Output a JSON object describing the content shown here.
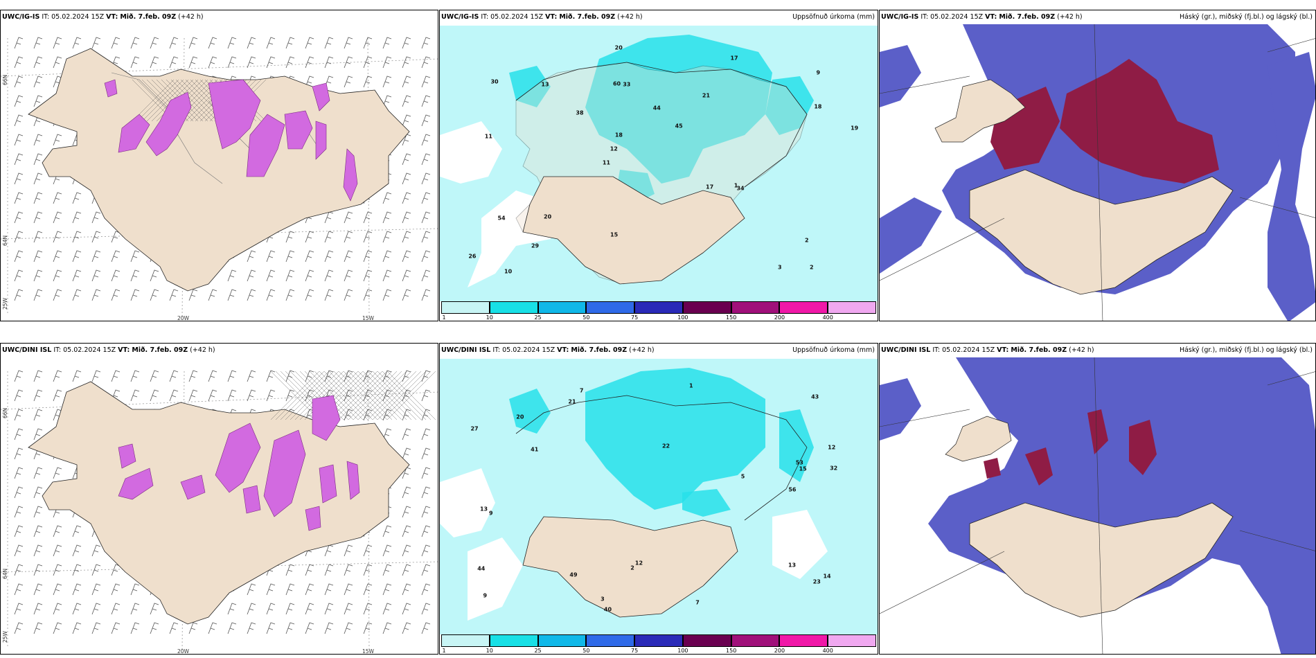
{
  "panels": [
    {
      "id": "ig-wind",
      "model": "UWC/IG-IS",
      "it_label": "IT:",
      "it_value": "05.02.2024 15Z",
      "vt_label": "VT:",
      "vt_value": "Mið. 7.feb. 09Z",
      "lead": "(+42 h)",
      "right_title": "",
      "lat_labels": [
        "66N",
        "64N",
        "25W"
      ],
      "lon_labels": [
        "20W",
        "15W"
      ]
    },
    {
      "id": "ig-precip",
      "model": "UWC/IG-IS",
      "it_label": "IT:",
      "it_value": "05.02.2024 15Z",
      "vt_label": "VT:",
      "vt_value": "Mið. 7.feb. 09Z",
      "lead": "(+42 h)",
      "right_title": "Uppsöfnuð úrkoma (mm)",
      "numbers": [
        "2",
        "11",
        "9",
        "11",
        "21",
        "10",
        "60",
        "44",
        "54",
        "38",
        "26",
        "29",
        "33",
        "45",
        "34",
        "30",
        "20",
        "19",
        "17",
        "18",
        "12",
        "15",
        "18",
        "13",
        "17",
        "20",
        "3",
        "2",
        "1"
      ]
    },
    {
      "id": "ig-cloud",
      "model": "UWC/IG-IS",
      "it_label": "IT:",
      "it_value": "05.02.2024 15Z",
      "vt_label": "VT:",
      "vt_value": "Mið. 7.feb. 09Z",
      "lead": "(+42 h)",
      "right_title": "Háský (gr.), miðský (fj.bl.) og lágský (bl.)"
    },
    {
      "id": "dini-wind",
      "model": "UWC/DINI ISL",
      "it_label": "IT:",
      "it_value": "05.02.2024 15Z",
      "vt_label": "VT:",
      "vt_value": "Mið. 7.feb. 09Z",
      "lead": "(+42 h)",
      "right_title": "",
      "lat_labels": [
        "66N",
        "64N",
        "25W"
      ],
      "lon_labels": [
        "20W",
        "15W"
      ]
    },
    {
      "id": "dini-precip",
      "model": "UWC/DINI ISL",
      "it_label": "IT:",
      "it_value": "05.02.2024 15Z",
      "vt_label": "VT:",
      "vt_value": "Mið. 7.feb. 09Z",
      "lead": "(+42 h)",
      "right_title": "Uppsöfnuð úrkoma (mm)",
      "numbers": [
        "13",
        "12",
        "14",
        "22",
        "9",
        "7",
        "53",
        "49",
        "43",
        "41",
        "32",
        "27",
        "56",
        "40",
        "44",
        "20",
        "23",
        "21",
        "12",
        "15",
        "13",
        "9",
        "7",
        "5",
        "3",
        "2",
        "1"
      ]
    },
    {
      "id": "dini-cloud",
      "model": "UWC/DINI ISL",
      "it_label": "IT:",
      "it_value": "05.02.2024 15Z",
      "vt_label": "VT:",
      "vt_value": "Mið. 7.feb. 09Z",
      "lead": "(+42 h)",
      "right_title": "Háský (gr.), miðský (fj.bl.) og lágský (bl.)"
    }
  ],
  "colorbar": {
    "labels": [
      "1",
      "10",
      "25",
      "50",
      "75",
      "100",
      "150",
      "200",
      "400"
    ],
    "colors": [
      "#c8f5f5",
      "#18e0e6",
      "#10b8e8",
      "#2f6ae8",
      "#2a2ab8",
      "#6a0050",
      "#a0107a",
      "#f018a8",
      "#f0a8f0"
    ]
  },
  "colors": {
    "land": "#efdfcc",
    "precip_light": "#bff7f9",
    "precip_mid": "#27e0ea",
    "wind_precip": "#d26ae0",
    "cloud_low": "#5b5fc8",
    "cloud_high": "#8f1c45",
    "cloud_mid": "#8ad4f8"
  }
}
